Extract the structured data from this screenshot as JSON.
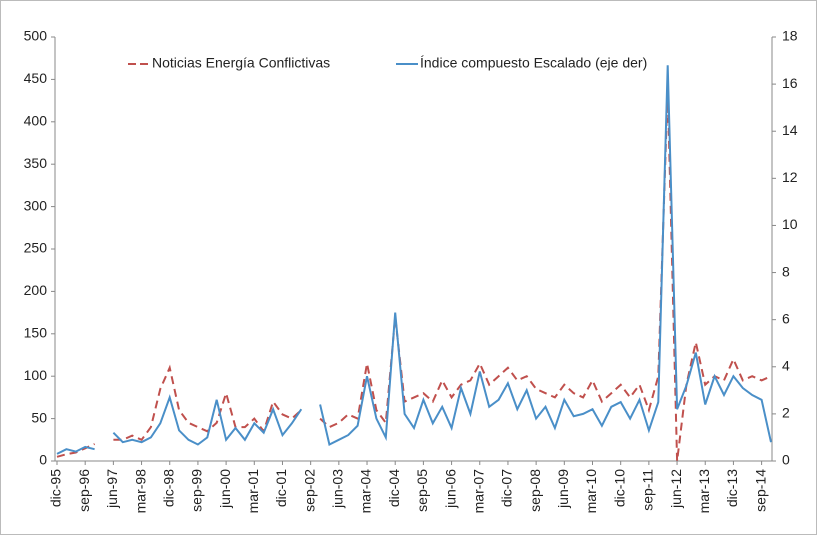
{
  "chart_data": {
    "type": "line",
    "categories": [
      "dic-95",
      null,
      null,
      "sep-96",
      null,
      null,
      "jun-97",
      null,
      null,
      "mar-98",
      null,
      null,
      "dic-98",
      null,
      null,
      "sep-99",
      null,
      null,
      "jun-00",
      null,
      null,
      "mar-01",
      null,
      null,
      "dic-01",
      null,
      null,
      "sep-02",
      null,
      null,
      "jun-03",
      null,
      null,
      "mar-04",
      null,
      null,
      "dic-04",
      null,
      null,
      "sep-05",
      null,
      null,
      "jun-06",
      null,
      null,
      "mar-07",
      null,
      null,
      "dic-07",
      null,
      null,
      "sep-08",
      null,
      null,
      "jun-09",
      null,
      null,
      "mar-10",
      null,
      null,
      "dic-10",
      null,
      null,
      "sep-11",
      null,
      null,
      "jun-12",
      null,
      null,
      "mar-13",
      null,
      null,
      "dic-13",
      null,
      null,
      "sep-14",
      null
    ],
    "series": [
      {
        "name": "Noticias Energía Conflictivas",
        "color": "#c0504d",
        "line_style": "dashed",
        "values": [
          5,
          8,
          10,
          15,
          20,
          null,
          25,
          25,
          30,
          25,
          40,
          85,
          110,
          60,
          45,
          40,
          35,
          45,
          80,
          40,
          40,
          50,
          35,
          70,
          55,
          50,
          60,
          null,
          50,
          40,
          45,
          55,
          50,
          115,
          60,
          45,
          170,
          70,
          75,
          80,
          70,
          95,
          75,
          90,
          95,
          115,
          90,
          100,
          110,
          95,
          100,
          85,
          80,
          75,
          90,
          80,
          75,
          95,
          70,
          80,
          90,
          75,
          90,
          60,
          100,
          440,
          0,
          90,
          140,
          90,
          100,
          95,
          120,
          95,
          100,
          95,
          100
        ]
      },
      {
        "name": "Índice compuesto Escalado (eje der)",
        "color": "#4a8fc8",
        "line_style": "solid",
        "axis": "y2",
        "values": [
          0.3,
          0.5,
          0.4,
          0.6,
          0.5,
          null,
          1.2,
          0.8,
          0.9,
          0.8,
          1.0,
          1.6,
          2.7,
          1.3,
          0.9,
          0.7,
          1.0,
          2.6,
          0.9,
          1.4,
          0.9,
          1.6,
          1.2,
          2.2,
          1.1,
          1.6,
          2.2,
          null,
          2.4,
          0.7,
          0.9,
          1.1,
          1.5,
          3.6,
          1.8,
          1.0,
          6.3,
          2.0,
          1.4,
          2.6,
          1.6,
          2.3,
          1.4,
          3.1,
          2.0,
          3.8,
          2.3,
          2.6,
          3.3,
          2.2,
          3.0,
          1.8,
          2.3,
          1.4,
          2.6,
          1.9,
          2.0,
          2.2,
          1.5,
          2.3,
          2.5,
          1.8,
          2.6,
          1.3,
          2.5,
          16.8,
          2.2,
          3.2,
          4.6,
          2.4,
          3.6,
          2.8,
          3.6,
          3.1,
          2.8,
          2.6,
          0.8
        ]
      }
    ],
    "ylim": [
      0,
      500
    ],
    "yticks": [
      0,
      50,
      100,
      150,
      200,
      250,
      300,
      350,
      400,
      450,
      500
    ],
    "y2lim": [
      0,
      18
    ],
    "y2ticks": [
      0,
      2,
      4,
      6,
      8,
      10,
      12,
      14,
      16,
      18
    ]
  }
}
